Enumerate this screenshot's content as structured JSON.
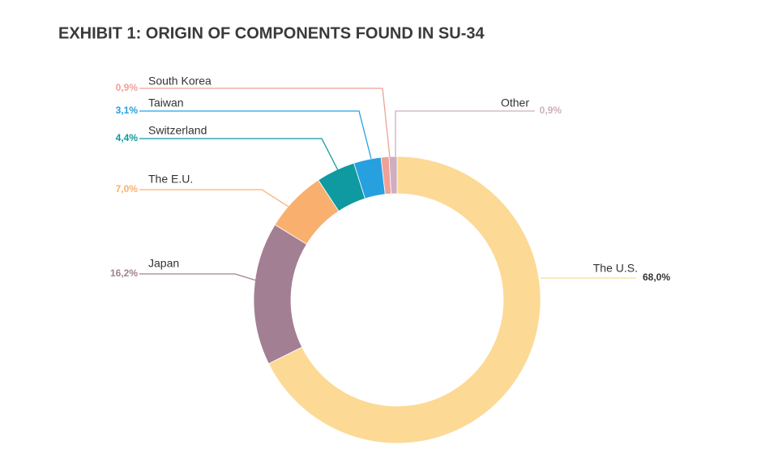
{
  "chart_data": {
    "type": "donut",
    "title": "EXHIBIT 1: ORIGIN OF COMPONENTS FOUND IN SU-34",
    "categories": [
      "The U.S.",
      "Japan",
      "The E.U.",
      "Switzerland",
      "Taiwan",
      "South Korea",
      "Other"
    ],
    "values": [
      68.0,
      16.2,
      7.0,
      4.4,
      3.1,
      0.9,
      0.9
    ],
    "value_labels": [
      "68,0%",
      "16,2%",
      "7,0%",
      "4,4%",
      "3,1%",
      "0,9%",
      "0,9%"
    ],
    "colors": [
      "#fcd995",
      "#a37f93",
      "#f9b06f",
      "#0e9aa0",
      "#27a0e0",
      "#f0a097",
      "#cfaebf"
    ]
  }
}
